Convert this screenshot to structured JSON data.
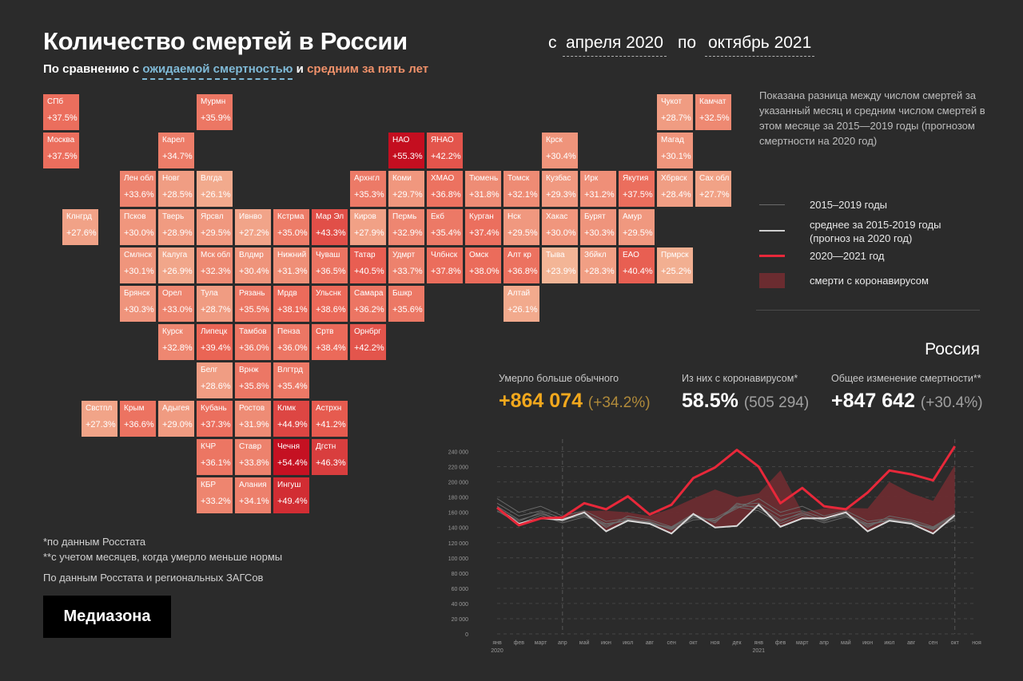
{
  "header": {
    "title": "Количество смертей в России",
    "subtitle_prefix": "По сравнению с",
    "subtitle_expected": "ожидаемой смертностью",
    "subtitle_and": "и",
    "subtitle_avg": "средним за пять лет"
  },
  "daterange": {
    "from_label": "с",
    "from_value": "апреля 2020",
    "to_label": "по",
    "to_value": "октябрь 2021"
  },
  "description": "Показана разница между числом смертей за указанный месяц и средним числом смертей в этом месяце за 2015—2019 годы (прогнозом смертности на 2020 год)",
  "legend": [
    {
      "label": "2015–2019 годы",
      "color": "#6a6a6a"
    },
    {
      "label": "среднее за 2015-2019 годы (прогноз на 2020 год)",
      "color": "#cfcfcf"
    },
    {
      "label": "2020—2021 год",
      "color": "#e8283a"
    },
    {
      "label": "смерти с коронавирусом",
      "color": "#6b2c30"
    }
  ],
  "region": "Россия",
  "stats": {
    "excess_label": "Умерло больше обычного",
    "excess_value": "+864 074",
    "excess_pct": "(+34.2%)",
    "covid_label": "Из них с коронавирусом*",
    "covid_value": "58.5%",
    "covid_count": "(505 294)",
    "total_label": "Общее изменение смертности**",
    "total_value": "+847 642",
    "total_pct": "(+30.4%)"
  },
  "tiles": [
    {
      "name": "СПб",
      "value": "+37.5%",
      "col": 0,
      "row": 0
    },
    {
      "name": "Мурмн",
      "value": "+35.9%",
      "col": 4,
      "row": 0
    },
    {
      "name": "Чукот",
      "value": "+28.7%",
      "col": 16,
      "row": 0
    },
    {
      "name": "Камчат",
      "value": "+32.5%",
      "col": 17,
      "row": 0
    },
    {
      "name": "Москва",
      "value": "+37.5%",
      "col": 0,
      "row": 1
    },
    {
      "name": "Карел",
      "value": "+34.7%",
      "col": 3,
      "row": 1
    },
    {
      "name": "НАО",
      "value": "+55.3%",
      "col": 9,
      "row": 1
    },
    {
      "name": "ЯНАО",
      "value": "+42.2%",
      "col": 10,
      "row": 1
    },
    {
      "name": "Крск",
      "value": "+30.4%",
      "col": 13,
      "row": 1
    },
    {
      "name": "Магад",
      "value": "+30.1%",
      "col": 16,
      "row": 1
    },
    {
      "name": "Лен обл",
      "value": "+33.6%",
      "col": 2,
      "row": 2
    },
    {
      "name": "Новг",
      "value": "+28.5%",
      "col": 3,
      "row": 2
    },
    {
      "name": "Влгда",
      "value": "+26.1%",
      "col": 4,
      "row": 2
    },
    {
      "name": "Архнгл",
      "value": "+35.3%",
      "col": 8,
      "row": 2
    },
    {
      "name": "Коми",
      "value": "+29.7%",
      "col": 9,
      "row": 2
    },
    {
      "name": "ХМАО",
      "value": "+36.8%",
      "col": 10,
      "row": 2
    },
    {
      "name": "Тюмень",
      "value": "+31.8%",
      "col": 11,
      "row": 2
    },
    {
      "name": "Томск",
      "value": "+32.1%",
      "col": 12,
      "row": 2
    },
    {
      "name": "Кузбас",
      "value": "+29.3%",
      "col": 13,
      "row": 2
    },
    {
      "name": "Ирк",
      "value": "+31.2%",
      "col": 14,
      "row": 2
    },
    {
      "name": "Якутия",
      "value": "+37.5%",
      "col": 15,
      "row": 2
    },
    {
      "name": "Хбрвск",
      "value": "+28.4%",
      "col": 16,
      "row": 2
    },
    {
      "name": "Сах обл",
      "value": "+27.7%",
      "col": 17,
      "row": 2
    },
    {
      "name": "Клнгрд",
      "value": "+27.6%",
      "col": 0.5,
      "row": 3
    },
    {
      "name": "Псков",
      "value": "+30.0%",
      "col": 2,
      "row": 3
    },
    {
      "name": "Тверь",
      "value": "+28.9%",
      "col": 3,
      "row": 3
    },
    {
      "name": "Ярсвл",
      "value": "+29.5%",
      "col": 4,
      "row": 3
    },
    {
      "name": "Ивнво",
      "value": "+27.2%",
      "col": 5,
      "row": 3
    },
    {
      "name": "Кстрма",
      "value": "+35.0%",
      "col": 6,
      "row": 3
    },
    {
      "name": "Мар Эл",
      "value": "+43.3%",
      "col": 7,
      "row": 3
    },
    {
      "name": "Киров",
      "value": "+27.9%",
      "col": 8,
      "row": 3
    },
    {
      "name": "Пермь",
      "value": "+32.9%",
      "col": 9,
      "row": 3
    },
    {
      "name": "Екб",
      "value": "+35.4%",
      "col": 10,
      "row": 3
    },
    {
      "name": "Курган",
      "value": "+37.4%",
      "col": 11,
      "row": 3
    },
    {
      "name": "Нск",
      "value": "+29.5%",
      "col": 12,
      "row": 3
    },
    {
      "name": "Хакас",
      "value": "+30.0%",
      "col": 13,
      "row": 3
    },
    {
      "name": "Бурят",
      "value": "+30.3%",
      "col": 14,
      "row": 3
    },
    {
      "name": "Амур",
      "value": "+29.5%",
      "col": 15,
      "row": 3
    },
    {
      "name": "Смлнск",
      "value": "+30.1%",
      "col": 2,
      "row": 4
    },
    {
      "name": "Калуга",
      "value": "+26.9%",
      "col": 3,
      "row": 4
    },
    {
      "name": "Мск обл",
      "value": "+32.3%",
      "col": 4,
      "row": 4
    },
    {
      "name": "Влдмр",
      "value": "+30.4%",
      "col": 5,
      "row": 4
    },
    {
      "name": "Нижний",
      "value": "+31.3%",
      "col": 6,
      "row": 4
    },
    {
      "name": "Чуваш",
      "value": "+36.5%",
      "col": 7,
      "row": 4
    },
    {
      "name": "Татар",
      "value": "+40.5%",
      "col": 8,
      "row": 4
    },
    {
      "name": "Удмрт",
      "value": "+33.7%",
      "col": 9,
      "row": 4
    },
    {
      "name": "Члбнск",
      "value": "+37.8%",
      "col": 10,
      "row": 4
    },
    {
      "name": "Омск",
      "value": "+38.0%",
      "col": 11,
      "row": 4
    },
    {
      "name": "Алт кр",
      "value": "+36.8%",
      "col": 12,
      "row": 4
    },
    {
      "name": "Тыва",
      "value": "+23.9%",
      "col": 13,
      "row": 4
    },
    {
      "name": "Збйкл",
      "value": "+28.3%",
      "col": 14,
      "row": 4
    },
    {
      "name": "ЕАО",
      "value": "+40.4%",
      "col": 15,
      "row": 4
    },
    {
      "name": "Прмрск",
      "value": "+25.2%",
      "col": 16,
      "row": 4
    },
    {
      "name": "Брянск",
      "value": "+30.3%",
      "col": 2,
      "row": 5
    },
    {
      "name": "Орел",
      "value": "+33.0%",
      "col": 3,
      "row": 5
    },
    {
      "name": "Тула",
      "value": "+28.7%",
      "col": 4,
      "row": 5
    },
    {
      "name": "Рязань",
      "value": "+35.5%",
      "col": 5,
      "row": 5
    },
    {
      "name": "Мрдв",
      "value": "+38.1%",
      "col": 6,
      "row": 5
    },
    {
      "name": "Ульснк",
      "value": "+38.6%",
      "col": 7,
      "row": 5
    },
    {
      "name": "Самара",
      "value": "+36.2%",
      "col": 8,
      "row": 5
    },
    {
      "name": "Бшкр",
      "value": "+35.6%",
      "col": 9,
      "row": 5
    },
    {
      "name": "Алтай",
      "value": "+26.1%",
      "col": 12,
      "row": 5
    },
    {
      "name": "Курск",
      "value": "+32.8%",
      "col": 3,
      "row": 6
    },
    {
      "name": "Липецк",
      "value": "+39.4%",
      "col": 4,
      "row": 6
    },
    {
      "name": "Тамбов",
      "value": "+36.0%",
      "col": 5,
      "row": 6
    },
    {
      "name": "Пенза",
      "value": "+36.0%",
      "col": 6,
      "row": 6
    },
    {
      "name": "Сртв",
      "value": "+38.4%",
      "col": 7,
      "row": 6
    },
    {
      "name": "Орнбрг",
      "value": "+42.2%",
      "col": 8,
      "row": 6
    },
    {
      "name": "Белг",
      "value": "+28.6%",
      "col": 4,
      "row": 7
    },
    {
      "name": "Врнж",
      "value": "+35.8%",
      "col": 5,
      "row": 7
    },
    {
      "name": "Влгтрд",
      "value": "+35.4%",
      "col": 6,
      "row": 7
    },
    {
      "name": "Свстпл",
      "value": "+27.3%",
      "col": 1,
      "row": 8
    },
    {
      "name": "Крым",
      "value": "+36.6%",
      "col": 2,
      "row": 8
    },
    {
      "name": "Адыгея",
      "value": "+29.0%",
      "col": 3,
      "row": 8
    },
    {
      "name": "Кубань",
      "value": "+37.3%",
      "col": 4,
      "row": 8
    },
    {
      "name": "Ростов",
      "value": "+31.9%",
      "col": 5,
      "row": 8
    },
    {
      "name": "Клмк",
      "value": "+44.9%",
      "col": 6,
      "row": 8
    },
    {
      "name": "Астрхн",
      "value": "+41.2%",
      "col": 7,
      "row": 8
    },
    {
      "name": "КЧР",
      "value": "+36.1%",
      "col": 4,
      "row": 9
    },
    {
      "name": "Ставр",
      "value": "+33.8%",
      "col": 5,
      "row": 9
    },
    {
      "name": "Чечня",
      "value": "+54.4%",
      "col": 6,
      "row": 9
    },
    {
      "name": "Дгстн",
      "value": "+46.3%",
      "col": 7,
      "row": 9
    },
    {
      "name": "КБР",
      "value": "+33.2%",
      "col": 4,
      "row": 10
    },
    {
      "name": "Алания",
      "value": "+34.1%",
      "col": 5,
      "row": 10
    },
    {
      "name": "Ингуш",
      "value": "+49.4%",
      "col": 6,
      "row": 10
    }
  ],
  "footnotes": {
    "note1": "*по данным Росстата",
    "note2": "**с учетом месяцев, когда умерло меньше нормы",
    "source": "По данным Росстата и региональных ЗАГСов"
  },
  "logo": "Медиазона",
  "chart_data": {
    "type": "line",
    "ylim": [
      0,
      250000
    ],
    "yticks": [
      0,
      20000,
      40000,
      60000,
      80000,
      100000,
      120000,
      140000,
      160000,
      180000,
      200000,
      220000,
      240000
    ],
    "ytick_labels": [
      "0",
      "20 000",
      "40 000",
      "60 000",
      "80 000",
      "100 000",
      "120 000",
      "140 000",
      "160 000",
      "180 000",
      "200 000",
      "220 000",
      "240 000"
    ],
    "months": [
      "янв",
      "фев",
      "март",
      "апр",
      "май",
      "июн",
      "июл",
      "авг",
      "сен",
      "окт",
      "ноя",
      "дек",
      "янв",
      "фев",
      "март",
      "апр",
      "май",
      "июн",
      "июл",
      "авг",
      "сен",
      "окт",
      "ноя"
    ],
    "year_labels": [
      {
        "index": 0,
        "label": "2020"
      },
      {
        "index": 12,
        "label": "2021"
      }
    ],
    "dashed_verticals": [
      3,
      21
    ],
    "history": [
      [
        178000,
        160000,
        168000,
        155000,
        162000,
        148000,
        152000,
        147000,
        137000,
        153000,
        150000,
        165000,
        178000,
        160000,
        168000,
        155000,
        162000,
        148000,
        152000,
        147000,
        137000,
        153000
      ],
      [
        172000,
        155000,
        162000,
        152000,
        158000,
        145000,
        150000,
        146000,
        140000,
        156000,
        148000,
        170000,
        172000,
        155000,
        162000,
        152000,
        158000,
        145000,
        150000,
        146000,
        140000,
        156000
      ],
      [
        168000,
        150000,
        158000,
        150000,
        156000,
        142000,
        151000,
        148000,
        138000,
        150000,
        152000,
        168000,
        168000,
        150000,
        158000,
        150000,
        156000,
        142000,
        151000,
        148000,
        138000,
        150000
      ],
      [
        165000,
        148000,
        160000,
        148000,
        160000,
        140000,
        155000,
        150000,
        141000,
        158000,
        146000,
        172000,
        165000,
        148000,
        160000,
        148000,
        160000,
        140000,
        155000,
        150000,
        141000,
        158000
      ],
      [
        162000,
        145000,
        156000,
        146000,
        154000,
        144000,
        149000,
        145000,
        139000,
        155000,
        149000,
        167000,
        162000,
        145000,
        156000,
        146000,
        154000,
        144000,
        149000,
        145000,
        139000,
        155000
      ]
    ],
    "average": [
      166000,
      145000,
      152000,
      150000,
      160000,
      135000,
      149000,
      145000,
      132000,
      158000,
      140000,
      142000,
      170000,
      141000,
      152000,
      152000,
      160000,
      135000,
      149000,
      145000,
      132000,
      156000
    ],
    "actual": [
      166000,
      143000,
      152000,
      153000,
      172000,
      164000,
      181000,
      157000,
      170000,
      205000,
      219000,
      242000,
      220000,
      172000,
      192000,
      168000,
      164000,
      186000,
      215000,
      210000,
      202000,
      247000
    ],
    "covid_top": [
      166000,
      145000,
      152000,
      155000,
      162000,
      162000,
      160000,
      155000,
      165000,
      178000,
      190000,
      180000,
      185000,
      215000,
      160000,
      165000,
      166000,
      165000,
      200000,
      185000,
      175000,
      222000
    ]
  }
}
